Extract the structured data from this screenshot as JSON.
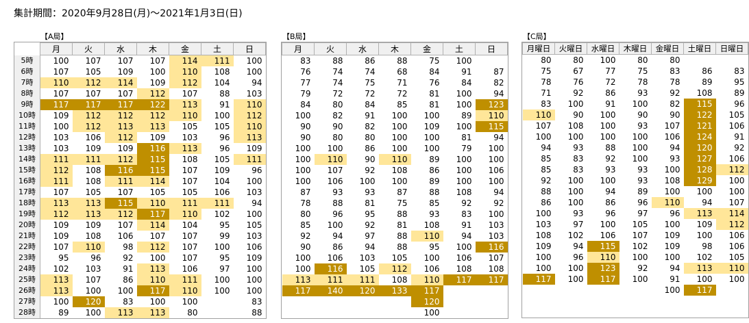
{
  "title": "集計期間：2020年9月28日(月)～2021年1月3日(日)",
  "legend_colors": {
    "high": "#ffe699",
    "very_high": "#bf8f00"
  },
  "hours": [
    "5時",
    "6時",
    "7時",
    "8時",
    "9時",
    "10時",
    "11時",
    "12時",
    "13時",
    "14時",
    "15時",
    "16時",
    "17時",
    "18時",
    "19時",
    "20時",
    "21時",
    "22時",
    "23時",
    "24時",
    "25時",
    "26時",
    "27時",
    "28時"
  ],
  "tables": [
    {
      "label": "【A局】",
      "days": [
        "月",
        "火",
        "水",
        "木",
        "金",
        "土",
        "日"
      ],
      "rows": [
        [
          "100",
          "107",
          "107",
          "107",
          "114",
          "111",
          "100"
        ],
        [
          "107",
          "105",
          "109",
          "100",
          "110",
          "108",
          "100"
        ],
        [
          "110",
          "112",
          "114",
          "109",
          "112",
          "104",
          "94"
        ],
        [
          "107",
          "107",
          "107",
          "112",
          "107",
          "88",
          "103"
        ],
        [
          "117",
          "117",
          "117",
          "122",
          "113",
          "91",
          "110"
        ],
        [
          "109",
          "112",
          "112",
          "112",
          "110",
          "100",
          "112"
        ],
        [
          "100",
          "112",
          "113",
          "113",
          "105",
          "105",
          "110"
        ],
        [
          "103",
          "106",
          "112",
          "109",
          "103",
          "96",
          "113"
        ],
        [
          "103",
          "109",
          "109",
          "116",
          "113",
          "96",
          "109"
        ],
        [
          "111",
          "111",
          "112",
          "115",
          "108",
          "105",
          "111"
        ],
        [
          "112",
          "108",
          "116",
          "115",
          "107",
          "109",
          "96"
        ],
        [
          "111",
          "108",
          "111",
          "114",
          "107",
          "104",
          "100"
        ],
        [
          "107",
          "105",
          "107",
          "105",
          "105",
          "106",
          "103"
        ],
        [
          "113",
          "113",
          "115",
          "110",
          "111",
          "111",
          "94"
        ],
        [
          "112",
          "113",
          "112",
          "117",
          "110",
          "102",
          "100"
        ],
        [
          "109",
          "109",
          "107",
          "114",
          "104",
          "95",
          "105"
        ],
        [
          "109",
          "108",
          "106",
          "107",
          "107",
          "99",
          "103"
        ],
        [
          "107",
          "110",
          "98",
          "112",
          "107",
          "100",
          "106"
        ],
        [
          "95",
          "96",
          "92",
          "100",
          "107",
          "95",
          "109"
        ],
        [
          "102",
          "103",
          "91",
          "113",
          "106",
          "97",
          "100"
        ],
        [
          "113",
          "107",
          "86",
          "110",
          "111",
          "100",
          "100"
        ],
        [
          "113",
          "100",
          "100",
          "117",
          "110",
          "100",
          "100"
        ],
        [
          "100",
          "120",
          "83",
          "100",
          "100",
          "",
          "83"
        ],
        [
          "89",
          "100",
          "113",
          "113",
          "80",
          "",
          "88"
        ]
      ]
    },
    {
      "label": "【B局】",
      "days": [
        "月",
        "火",
        "水",
        "木",
        "金",
        "土",
        "日"
      ],
      "rows": [
        [
          "83",
          "88",
          "86",
          "88",
          "75",
          "100",
          ""
        ],
        [
          "76",
          "74",
          "74",
          "68",
          "84",
          "91",
          "87"
        ],
        [
          "77",
          "74",
          "75",
          "71",
          "76",
          "84",
          "82"
        ],
        [
          "79",
          "72",
          "72",
          "72",
          "81",
          "100",
          "94"
        ],
        [
          "84",
          "80",
          "84",
          "85",
          "81",
          "100",
          "123"
        ],
        [
          "100",
          "82",
          "91",
          "100",
          "100",
          "89",
          "110"
        ],
        [
          "90",
          "90",
          "82",
          "100",
          "109",
          "100",
          "115"
        ],
        [
          "90",
          "80",
          "80",
          "100",
          "100",
          "81",
          "94"
        ],
        [
          "100",
          "100",
          "86",
          "100",
          "100",
          "79",
          "100"
        ],
        [
          "100",
          "110",
          "90",
          "110",
          "89",
          "100",
          "100"
        ],
        [
          "100",
          "107",
          "92",
          "108",
          "86",
          "100",
          "106"
        ],
        [
          "100",
          "106",
          "100",
          "100",
          "89",
          "100",
          "100"
        ],
        [
          "87",
          "93",
          "93",
          "87",
          "88",
          "108",
          "94"
        ],
        [
          "78",
          "88",
          "81",
          "75",
          "85",
          "92",
          "92"
        ],
        [
          "80",
          "96",
          "95",
          "88",
          "93",
          "83",
          "100"
        ],
        [
          "85",
          "100",
          "92",
          "81",
          "108",
          "91",
          "103"
        ],
        [
          "92",
          "94",
          "97",
          "88",
          "110",
          "94",
          "103"
        ],
        [
          "90",
          "86",
          "94",
          "88",
          "95",
          "100",
          "116"
        ],
        [
          "100",
          "106",
          "103",
          "105",
          "100",
          "106",
          "107"
        ],
        [
          "100",
          "116",
          "105",
          "112",
          "106",
          "108",
          "108"
        ],
        [
          "113",
          "111",
          "111",
          "108",
          "110",
          "117",
          "117"
        ],
        [
          "117",
          "140",
          "120",
          "133",
          "117",
          "",
          ""
        ],
        [
          "",
          "",
          "",
          "",
          "120",
          "",
          ""
        ],
        [
          "",
          "",
          "",
          "",
          "100",
          "",
          ""
        ]
      ]
    },
    {
      "label": "【C局】",
      "days": [
        "月曜日",
        "火曜日",
        "水曜日",
        "木曜日",
        "金曜日",
        "土曜日",
        "日曜日"
      ],
      "rows": [
        [
          "80",
          "80",
          "100",
          "80",
          "80",
          "",
          ""
        ],
        [
          "75",
          "67",
          "77",
          "75",
          "83",
          "86",
          "83"
        ],
        [
          "78",
          "76",
          "72",
          "78",
          "78",
          "89",
          "95"
        ],
        [
          "71",
          "92",
          "86",
          "93",
          "92",
          "108",
          "89"
        ],
        [
          "83",
          "100",
          "91",
          "100",
          "82",
          "115",
          "96"
        ],
        [
          "110",
          "90",
          "100",
          "90",
          "90",
          "122",
          "105"
        ],
        [
          "107",
          "108",
          "100",
          "93",
          "107",
          "121",
          "106"
        ],
        [
          "100",
          "100",
          "100",
          "100",
          "106",
          "124",
          "91"
        ],
        [
          "94",
          "93",
          "88",
          "100",
          "94",
          "120",
          "92"
        ],
        [
          "85",
          "83",
          "92",
          "100",
          "93",
          "127",
          "106"
        ],
        [
          "85",
          "83",
          "93",
          "93",
          "100",
          "128",
          "112"
        ],
        [
          "92",
          "100",
          "100",
          "93",
          "108",
          "129",
          "100"
        ],
        [
          "88",
          "100",
          "94",
          "89",
          "100",
          "100",
          "100"
        ],
        [
          "86",
          "100",
          "86",
          "96",
          "110",
          "94",
          "107"
        ],
        [
          "100",
          "93",
          "96",
          "97",
          "96",
          "113",
          "114"
        ],
        [
          "103",
          "97",
          "100",
          "105",
          "100",
          "109",
          "112"
        ],
        [
          "108",
          "102",
          "106",
          "107",
          "109",
          "100",
          "106"
        ],
        [
          "109",
          "94",
          "115",
          "102",
          "109",
          "98",
          "106"
        ],
        [
          "100",
          "96",
          "110",
          "100",
          "100",
          "102",
          "105"
        ],
        [
          "100",
          "100",
          "123",
          "92",
          "94",
          "113",
          "110"
        ],
        [
          "117",
          "100",
          "117",
          "100",
          "91",
          "100",
          "100"
        ],
        [
          "",
          "",
          "",
          "",
          "100",
          "117",
          ""
        ],
        [
          "",
          "",
          "",
          "",
          "",
          "",
          ""
        ],
        [
          "",
          "",
          "",
          "",
          "",
          "",
          ""
        ]
      ]
    }
  ]
}
